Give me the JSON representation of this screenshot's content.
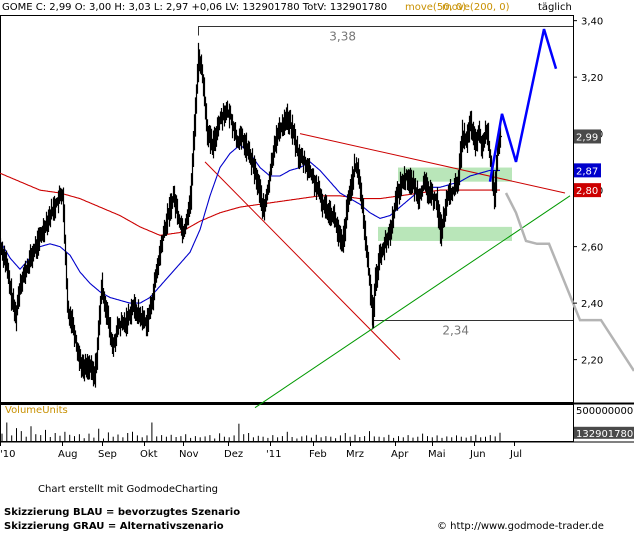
{
  "header": {
    "info": "GOME C: 2,99 O: 3,00 H: 3,03 L: 2,97 +0,06 LV: 132901780 TotV: 132901780",
    "ma50": "move(50, 0)",
    "ma200": "move(200, 0)",
    "period": "täglich"
  },
  "colors": {
    "price": "#000000",
    "ma50": "#0000cc",
    "ma200": "#cc0000",
    "ma_label": "#c89000",
    "scenario_blue": "#0000ff",
    "scenario_grey": "#b4b4b4",
    "zone": "#b9e6b9",
    "uptrend": "#009900",
    "downtrend": "#cc0000",
    "volume_label": "#c89000"
  },
  "chart_data": {
    "type": "line",
    "ylim": [
      2.05,
      3.42
    ],
    "y_ticks": [
      "3,40",
      "3,20",
      "3,00",
      "2,80",
      "2,60",
      "2,40",
      "2,20"
    ],
    "x_ticks": [
      "'10",
      "Aug",
      "Sep",
      "Okt",
      "Nov",
      "Dez",
      "'11",
      "Feb",
      "Mrz",
      "Apr",
      "Mai",
      "Jun",
      "Jul"
    ],
    "x_tick_positions": [
      0,
      62,
      102,
      144,
      183,
      228,
      270,
      313,
      350,
      395,
      432,
      474,
      514
    ],
    "price_anchors": [
      [
        0,
        2.6
      ],
      [
        5,
        2.55
      ],
      [
        10,
        2.44
      ],
      [
        15,
        2.35
      ],
      [
        20,
        2.48
      ],
      [
        25,
        2.51
      ],
      [
        30,
        2.56
      ],
      [
        38,
        2.62
      ],
      [
        46,
        2.69
      ],
      [
        55,
        2.75
      ],
      [
        62,
        2.79
      ],
      [
        67,
        2.38
      ],
      [
        72,
        2.33
      ],
      [
        77,
        2.23
      ],
      [
        82,
        2.17
      ],
      [
        88,
        2.18
      ],
      [
        94,
        2.14
      ],
      [
        97,
        2.25
      ],
      [
        101,
        2.46
      ],
      [
        106,
        2.37
      ],
      [
        112,
        2.24
      ],
      [
        118,
        2.32
      ],
      [
        125,
        2.33
      ],
      [
        132,
        2.39
      ],
      [
        140,
        2.35
      ],
      [
        146,
        2.33
      ],
      [
        150,
        2.38
      ],
      [
        156,
        2.51
      ],
      [
        162,
        2.63
      ],
      [
        168,
        2.72
      ],
      [
        173,
        2.78
      ],
      [
        178,
        2.7
      ],
      [
        183,
        2.65
      ],
      [
        190,
        2.77
      ],
      [
        195,
        3.1
      ],
      [
        198,
        3.28
      ],
      [
        202,
        3.2
      ],
      [
        207,
        3.0
      ],
      [
        212,
        2.95
      ],
      [
        218,
        3.04
      ],
      [
        224,
        3.08
      ],
      [
        230,
        3.06
      ],
      [
        236,
        2.98
      ],
      [
        242,
        2.98
      ],
      [
        248,
        2.93
      ],
      [
        254,
        2.87
      ],
      [
        260,
        2.78
      ],
      [
        263,
        2.72
      ],
      [
        268,
        2.82
      ],
      [
        274,
        2.97
      ],
      [
        280,
        3.02
      ],
      [
        286,
        3.06
      ],
      [
        292,
        3.01
      ],
      [
        298,
        2.92
      ],
      [
        304,
        2.9
      ],
      [
        310,
        2.86
      ],
      [
        316,
        2.81
      ],
      [
        322,
        2.75
      ],
      [
        328,
        2.73
      ],
      [
        334,
        2.7
      ],
      [
        338,
        2.64
      ],
      [
        342,
        2.6
      ],
      [
        346,
        2.72
      ],
      [
        350,
        2.81
      ],
      [
        354,
        2.88
      ],
      [
        358,
        2.86
      ],
      [
        362,
        2.73
      ],
      [
        366,
        2.58
      ],
      [
        369,
        2.48
      ],
      [
        372,
        2.36
      ],
      [
        375,
        2.48
      ],
      [
        380,
        2.58
      ],
      [
        385,
        2.61
      ],
      [
        390,
        2.66
      ],
      [
        395,
        2.76
      ],
      [
        400,
        2.82
      ],
      [
        406,
        2.85
      ],
      [
        412,
        2.82
      ],
      [
        418,
        2.78
      ],
      [
        424,
        2.82
      ],
      [
        430,
        2.78
      ],
      [
        436,
        2.77
      ],
      [
        440,
        2.65
      ],
      [
        444,
        2.72
      ],
      [
        448,
        2.79
      ],
      [
        454,
        2.8
      ],
      [
        458,
        2.85
      ],
      [
        462,
        3.0
      ],
      [
        466,
        2.97
      ],
      [
        470,
        3.04
      ],
      [
        474,
        2.96
      ],
      [
        478,
        3.0
      ],
      [
        482,
        2.95
      ],
      [
        486,
        3.02
      ],
      [
        490,
        2.9
      ],
      [
        494,
        2.78
      ],
      [
        497,
        2.94
      ],
      [
        500,
        2.99
      ]
    ],
    "ma50_anchors": [
      [
        0,
        2.62
      ],
      [
        10,
        2.56
      ],
      [
        20,
        2.52
      ],
      [
        30,
        2.56
      ],
      [
        40,
        2.6
      ],
      [
        50,
        2.61
      ],
      [
        60,
        2.6
      ],
      [
        70,
        2.57
      ],
      [
        80,
        2.51
      ],
      [
        90,
        2.47
      ],
      [
        100,
        2.44
      ],
      [
        110,
        2.42
      ],
      [
        120,
        2.41
      ],
      [
        130,
        2.4
      ],
      [
        140,
        2.4
      ],
      [
        150,
        2.42
      ],
      [
        160,
        2.46
      ],
      [
        170,
        2.5
      ],
      [
        180,
        2.54
      ],
      [
        190,
        2.58
      ],
      [
        200,
        2.66
      ],
      [
        210,
        2.78
      ],
      [
        220,
        2.88
      ],
      [
        230,
        2.93
      ],
      [
        240,
        2.96
      ],
      [
        250,
        2.93
      ],
      [
        260,
        2.88
      ],
      [
        270,
        2.85
      ],
      [
        280,
        2.85
      ],
      [
        290,
        2.87
      ],
      [
        300,
        2.88
      ],
      [
        310,
        2.9
      ],
      [
        320,
        2.87
      ],
      [
        330,
        2.83
      ],
      [
        340,
        2.79
      ],
      [
        350,
        2.77
      ],
      [
        360,
        2.75
      ],
      [
        370,
        2.72
      ],
      [
        380,
        2.7
      ],
      [
        390,
        2.71
      ],
      [
        400,
        2.74
      ],
      [
        410,
        2.77
      ],
      [
        420,
        2.8
      ],
      [
        430,
        2.81
      ],
      [
        440,
        2.81
      ],
      [
        450,
        2.82
      ],
      [
        460,
        2.83
      ],
      [
        470,
        2.85
      ],
      [
        480,
        2.86
      ],
      [
        490,
        2.87
      ],
      [
        500,
        2.87
      ]
    ],
    "ma200_anchors": [
      [
        0,
        2.86
      ],
      [
        20,
        2.83
      ],
      [
        40,
        2.8
      ],
      [
        60,
        2.79
      ],
      [
        80,
        2.77
      ],
      [
        100,
        2.74
      ],
      [
        120,
        2.71
      ],
      [
        140,
        2.67
      ],
      [
        160,
        2.64
      ],
      [
        180,
        2.65
      ],
      [
        200,
        2.69
      ],
      [
        220,
        2.72
      ],
      [
        240,
        2.74
      ],
      [
        260,
        2.75
      ],
      [
        280,
        2.76
      ],
      [
        300,
        2.77
      ],
      [
        320,
        2.78
      ],
      [
        340,
        2.78
      ],
      [
        360,
        2.77
      ],
      [
        380,
        2.77
      ],
      [
        400,
        2.78
      ],
      [
        420,
        2.79
      ],
      [
        440,
        2.8
      ],
      [
        460,
        2.8
      ],
      [
        480,
        2.8
      ],
      [
        500,
        2.8
      ]
    ],
    "price_tags": [
      {
        "label": "2,99",
        "value": 2.99
      },
      {
        "label": "2,87",
        "value": 2.87
      },
      {
        "label": "2,80",
        "value": 2.8
      }
    ],
    "levels": [
      {
        "label": "3,38",
        "value": 3.38,
        "x_from": 198
      },
      {
        "label": "2,34",
        "value": 2.34,
        "x_from": 372
      }
    ],
    "zones": [
      {
        "x_from": 398,
        "x_to": 512,
        "low": 2.83,
        "high": 2.88
      },
      {
        "x_from": 378,
        "x_to": 512,
        "low": 2.62,
        "high": 2.67
      }
    ],
    "downtrend_lines": [
      {
        "from": [
          205,
          2.9
        ],
        "to": [
          400,
          2.2
        ]
      },
      {
        "from": [
          300,
          3.0
        ],
        "to": [
          565,
          2.79
        ]
      }
    ],
    "uptrend_line": {
      "from": [
        255,
        2.03
      ],
      "to": [
        570,
        2.78
      ]
    },
    "scenario_blue": [
      [
        490,
        2.83
      ],
      [
        502,
        3.07
      ],
      [
        516,
        2.9
      ],
      [
        544,
        3.37
      ],
      [
        556,
        3.23
      ]
    ],
    "scenario_grey": [
      [
        506,
        2.79
      ],
      [
        516,
        2.72
      ],
      [
        526,
        2.62
      ],
      [
        537,
        2.61
      ],
      [
        549,
        2.61
      ],
      [
        580,
        2.34
      ],
      [
        601,
        2.34
      ],
      [
        634,
        2.16
      ]
    ],
    "volume": {
      "label": "VolumeUnits",
      "max_label": "500000000",
      "last_label": "132901780",
      "ylim": [
        0,
        600000000
      ],
      "bars": [
        120000000,
        300000000,
        90000000,
        210000000,
        160000000,
        70000000,
        240000000,
        110000000,
        95000000,
        180000000,
        65000000,
        130000000,
        85000000,
        150000000,
        100000000,
        80000000,
        110000000,
        45000000,
        120000000,
        55000000,
        200000000,
        40000000,
        140000000,
        70000000,
        105000000,
        60000000,
        130000000,
        150000000,
        90000000,
        60000000,
        90000000,
        300000000,
        75000000,
        95000000,
        70000000,
        100000000,
        65000000,
        80000000,
        110000000,
        50000000,
        80000000,
        60000000,
        75000000,
        95000000,
        40000000,
        125000000,
        70000000,
        60000000,
        90000000,
        280000000,
        110000000,
        130000000,
        60000000,
        85000000,
        70000000,
        50000000,
        95000000,
        60000000,
        80000000,
        150000000,
        65000000,
        40000000,
        75000000,
        90000000,
        55000000,
        100000000,
        60000000,
        80000000,
        70000000,
        45000000,
        90000000,
        130000000,
        70000000,
        100000000,
        65000000,
        80000000,
        160000000,
        75000000,
        70000000,
        60000000,
        100000000,
        50000000,
        80000000,
        60000000,
        95000000,
        55000000,
        70000000,
        120000000,
        80000000,
        60000000,
        90000000,
        50000000,
        75000000,
        60000000,
        90000000,
        70000000,
        55000000,
        80000000,
        100000000,
        60000000,
        70000000,
        95000000,
        75000000,
        133000000
      ]
    }
  },
  "footer": {
    "credit": "Chart erstellt mit GodmodeCharting",
    "legend_blue": "Skizzierung BLAU = bevorzugtes Szenario",
    "legend_grey": "Skizzierung GRAU = Alternativszenario",
    "copyright": "© http://www.godmode-trader.de"
  }
}
